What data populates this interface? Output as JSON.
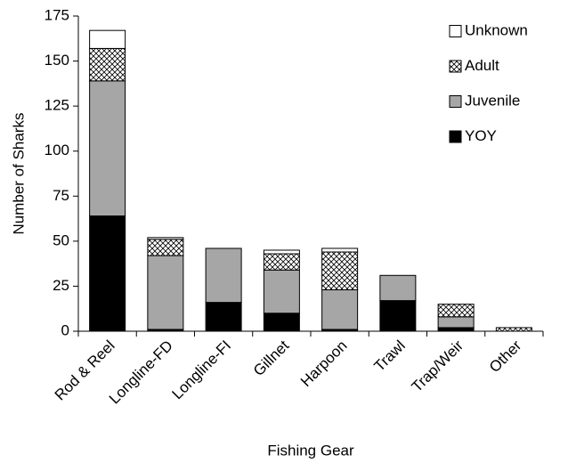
{
  "chart_data": {
    "type": "stacked-bar",
    "categories": [
      "Rod & Reel",
      "Longline-FD",
      "Longline-FI",
      "Gillnet",
      "Harpoon",
      "Trawl",
      "Trap/Weir",
      "Other"
    ],
    "series": [
      {
        "name": "YOY",
        "color": "#000000",
        "values": [
          64,
          1,
          16,
          10,
          1,
          17,
          2,
          0
        ]
      },
      {
        "name": "Juvenile",
        "color": "#a6a6a6",
        "values": [
          75,
          41,
          30,
          24,
          22,
          14,
          6,
          0
        ]
      },
      {
        "name": "Adult",
        "color": "#ffffff",
        "pattern": "crosshatch",
        "values": [
          18,
          9,
          0,
          9,
          21,
          0,
          7,
          2
        ]
      },
      {
        "name": "Unknown",
        "color": "#ffffff",
        "values": [
          10,
          1,
          0,
          2,
          2,
          0,
          0,
          0
        ]
      }
    ],
    "x_label": "Fishing Gear",
    "y_label": "Number of Sharks",
    "ylim": [
      0,
      175
    ],
    "yticks": [
      0,
      25,
      50,
      75,
      100,
      125,
      150,
      175
    ],
    "grid": false,
    "legend_position": "upper-right"
  }
}
